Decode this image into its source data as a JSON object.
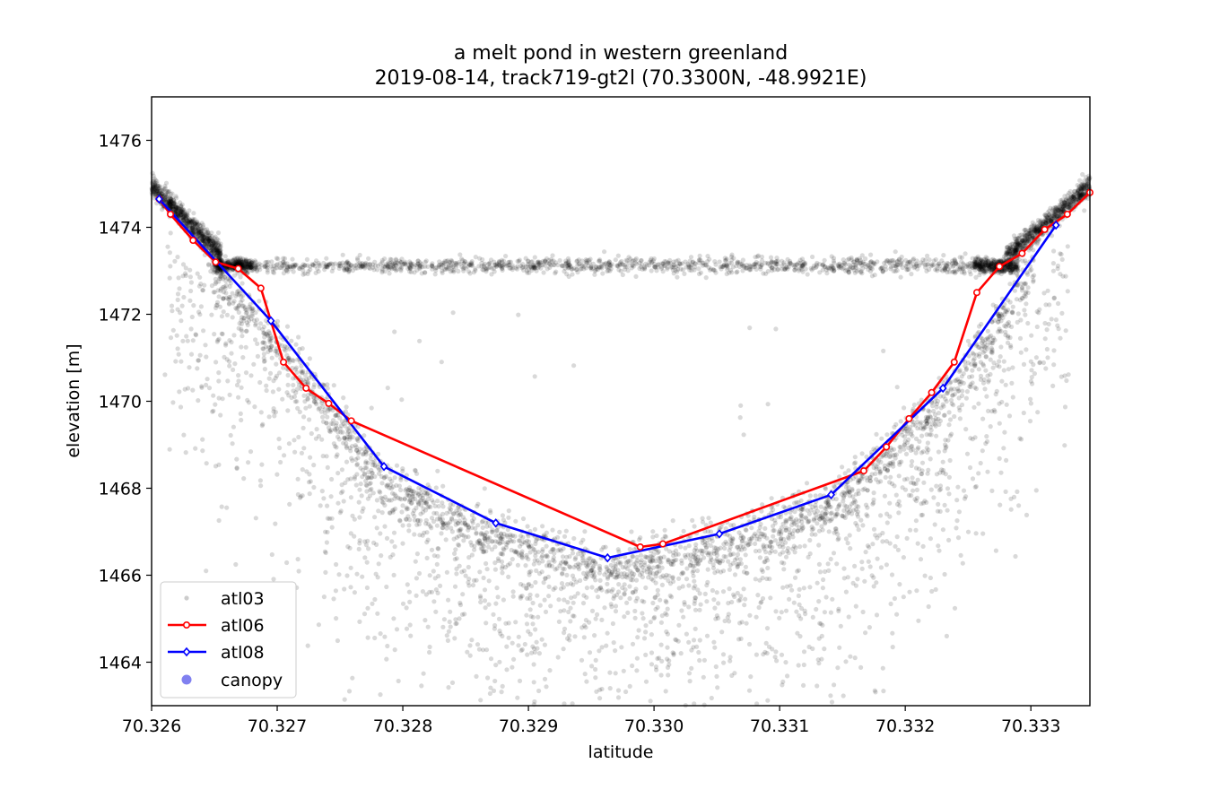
{
  "chart_data": {
    "type": "scatter",
    "title": "a melt pond in western greenland",
    "subtitle": "2019-08-14, track719-gt2l (70.3300N, -48.9921E)",
    "xlabel": "latitude",
    "ylabel": "elevation [m]",
    "xlim": [
      70.326,
      70.33347
    ],
    "ylim": [
      1463,
      1477
    ],
    "xticks": [
      70.326,
      70.327,
      70.328,
      70.329,
      70.33,
      70.331,
      70.332,
      70.333
    ],
    "xtick_labels": [
      "70.326",
      "70.327",
      "70.328",
      "70.329",
      "70.330",
      "70.331",
      "70.332",
      "70.333"
    ],
    "yticks": [
      1464,
      1466,
      1468,
      1470,
      1472,
      1474,
      1476
    ],
    "ytick_labels": [
      "1464",
      "1466",
      "1468",
      "1470",
      "1472",
      "1474",
      "1476"
    ],
    "grid": false,
    "legend_position": "lower-left",
    "series": [
      {
        "name": "atl03",
        "kind": "scatter-cloud",
        "color": "#000000",
        "opacity": 0.15,
        "note_regions": [
          {
            "region": "surface",
            "x": [
              70.326,
              70.33347
            ],
            "y_center": 1473.15
          },
          {
            "region": "pond-bottom",
            "x": [
              70.3262,
              70.3333
            ]
          }
        ]
      },
      {
        "name": "atl06",
        "color": "#ff0000",
        "marker": "o",
        "x": [
          70.32606,
          70.32615,
          70.32633,
          70.32651,
          70.32669,
          70.32687,
          70.32705,
          70.32723,
          70.32741,
          70.32759,
          70.32989,
          70.33007,
          70.33167,
          70.33185,
          70.33203,
          70.33221,
          70.33239,
          70.33257,
          70.33275,
          70.33293,
          70.33311,
          70.33329,
          70.33347
        ],
        "y": [
          1474.65,
          1474.3,
          1473.7,
          1473.2,
          1473.05,
          1472.6,
          1470.9,
          1470.3,
          1469.95,
          1469.55,
          1466.65,
          1466.72,
          1468.4,
          1468.95,
          1469.6,
          1470.2,
          1470.9,
          1472.5,
          1473.1,
          1473.4,
          1473.95,
          1474.3,
          1474.8
        ]
      },
      {
        "name": "atl08",
        "color": "#0000ff",
        "marker": "D",
        "x": [
          70.32606,
          70.32695,
          70.32785,
          70.32874,
          70.32963,
          70.33052,
          70.33141,
          70.3323,
          70.3332
        ],
        "y": [
          1474.65,
          1471.85,
          1468.5,
          1467.2,
          1466.4,
          1466.95,
          1467.85,
          1470.3,
          1474.05
        ]
      },
      {
        "name": "canopy",
        "color": "#8080f0",
        "marker": "o",
        "x": [],
        "y": []
      }
    ]
  }
}
